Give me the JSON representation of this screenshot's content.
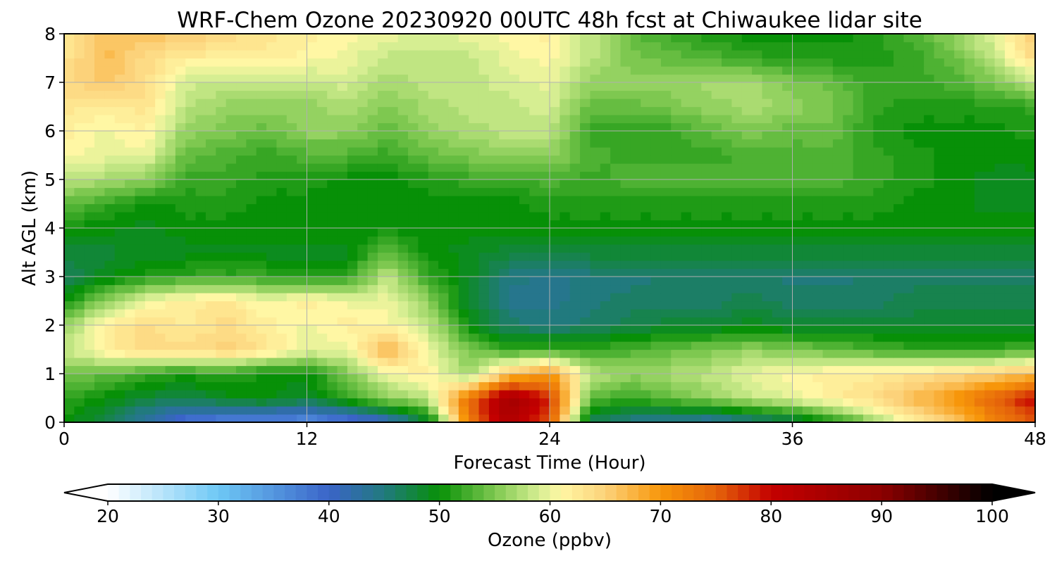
{
  "chart_data": {
    "type": "heatmap",
    "title": "WRF-Chem Ozone  20230920 00UTC 48h fcst at Chiwaukee lidar site",
    "xlabel": "Forecast Time (Hour)",
    "ylabel": "Alt AGL (km)",
    "xlim": [
      0,
      48
    ],
    "ylim": [
      0,
      8
    ],
    "xticks": [
      0,
      12,
      24,
      36,
      48
    ],
    "yticks": [
      0,
      1,
      2,
      3,
      4,
      5,
      6,
      7,
      8
    ],
    "grid": true,
    "x_hours": [
      0,
      2,
      4,
      6,
      8,
      10,
      12,
      14,
      16,
      18,
      20,
      22,
      24,
      26,
      28,
      30,
      32,
      34,
      36,
      38,
      40,
      42,
      44,
      46,
      48
    ],
    "y_km": [
      0,
      0.5,
      1,
      1.5,
      2,
      2.5,
      3,
      3.5,
      4,
      4.5,
      5,
      5.5,
      6,
      6.5,
      7,
      7.5,
      8
    ],
    "z_ppbv": [
      [
        50,
        47,
        42,
        38,
        36,
        36,
        35,
        37,
        40,
        48,
        72,
        84,
        76,
        46,
        44,
        43,
        42,
        44,
        46,
        50,
        56,
        62,
        66,
        72,
        76
      ],
      [
        52,
        50,
        48,
        47,
        49,
        50,
        48,
        52,
        56,
        58,
        74,
        86,
        78,
        54,
        52,
        54,
        56,
        58,
        60,
        62,
        64,
        67,
        70,
        75,
        80
      ],
      [
        55,
        54,
        52,
        51,
        52,
        50,
        50,
        55,
        60,
        62,
        56,
        66,
        70,
        58,
        56,
        57,
        58,
        60,
        61,
        62,
        62,
        63,
        64,
        65,
        67
      ],
      [
        58,
        62,
        64,
        64,
        65,
        63,
        60,
        60,
        68,
        60,
        55,
        52,
        52,
        52,
        53,
        54,
        55,
        56,
        55,
        54,
        53,
        52,
        52,
        52,
        53
      ],
      [
        56,
        62,
        64,
        62,
        64,
        62,
        60,
        62,
        61,
        58,
        50,
        46,
        45,
        46,
        47,
        48,
        48,
        49,
        48,
        48,
        48,
        48,
        48,
        48,
        48
      ],
      [
        50,
        56,
        60,
        62,
        63,
        60,
        62,
        60,
        60,
        56,
        48,
        44,
        44,
        45,
        46,
        46,
        46,
        47,
        46,
        46,
        46,
        47,
        47,
        47,
        47
      ],
      [
        46,
        49,
        51,
        52,
        52,
        52,
        51,
        52,
        58,
        52,
        49,
        45,
        44,
        45,
        45,
        46,
        46,
        46,
        45,
        45,
        46,
        46,
        46,
        46,
        46
      ],
      [
        48,
        48,
        49,
        49,
        49,
        49,
        49,
        49,
        54,
        50,
        49,
        48,
        48,
        48,
        48,
        48,
        48,
        48,
        48,
        48,
        48,
        48,
        48,
        48,
        48
      ],
      [
        50,
        50,
        49,
        50,
        50,
        50,
        50,
        50,
        50,
        50,
        50,
        50,
        50,
        50,
        50,
        50,
        50,
        50,
        50,
        50,
        50,
        50,
        50,
        50,
        50
      ],
      [
        54,
        52,
        50,
        51,
        51,
        50,
        50,
        50,
        50,
        50,
        50,
        50,
        51,
        51,
        51,
        51,
        51,
        51,
        51,
        51,
        51,
        50,
        50,
        49,
        49
      ],
      [
        58,
        57,
        56,
        52,
        52,
        51,
        51,
        50,
        50,
        51,
        52,
        52,
        53,
        52,
        53,
        53,
        53,
        53,
        53,
        53,
        52,
        51,
        50,
        49,
        49
      ],
      [
        61,
        60,
        60,
        54,
        53,
        52,
        53,
        53,
        52,
        54,
        55,
        56,
        56,
        53,
        52,
        52,
        52,
        53,
        53,
        53,
        52,
        51,
        50,
        50,
        50
      ],
      [
        62,
        60,
        62,
        56,
        55,
        54,
        56,
        56,
        54,
        56,
        57,
        58,
        58,
        52,
        52,
        52,
        54,
        55,
        54,
        54,
        51,
        50,
        50,
        50,
        51
      ],
      [
        63,
        62,
        63,
        58,
        56,
        56,
        56,
        57,
        55,
        57,
        58,
        58,
        59,
        54,
        54,
        55,
        56,
        57,
        56,
        55,
        52,
        51,
        51,
        51,
        52
      ],
      [
        64,
        66,
        64,
        59,
        58,
        58,
        58,
        59,
        57,
        58,
        58,
        59,
        60,
        56,
        56,
        56,
        57,
        57,
        55,
        54,
        52,
        52,
        53,
        55,
        58
      ],
      [
        63,
        67,
        64,
        62,
        62,
        62,
        61,
        60,
        58,
        58,
        58,
        60,
        61,
        58,
        55,
        54,
        53,
        52,
        51,
        51,
        51,
        52,
        54,
        58,
        64
      ],
      [
        62,
        66,
        66,
        66,
        64,
        63,
        62,
        61,
        60,
        59,
        60,
        61,
        62,
        58,
        54,
        52,
        51,
        50,
        50,
        50,
        51,
        53,
        56,
        60,
        66
      ]
    ],
    "colorbar": {
      "label": "Ozone  (ppbv)",
      "min": 20,
      "max": 100,
      "ticks": [
        20,
        30,
        40,
        50,
        60,
        70,
        80,
        90,
        100
      ],
      "extend": "both",
      "stops": [
        [
          20,
          "#ffffff"
        ],
        [
          30,
          "#6ec8f5"
        ],
        [
          40,
          "#3a64c8"
        ],
        [
          45,
          "#217a7e"
        ],
        [
          50,
          "#079007"
        ],
        [
          55,
          "#7ec850"
        ],
        [
          59,
          "#d6ee92"
        ],
        [
          61,
          "#fff7a4"
        ],
        [
          65,
          "#fcd27a"
        ],
        [
          70,
          "#f7960a"
        ],
        [
          75,
          "#e5640a"
        ],
        [
          80,
          "#c40000"
        ],
        [
          90,
          "#8c0000"
        ],
        [
          100,
          "#000000"
        ]
      ]
    }
  }
}
